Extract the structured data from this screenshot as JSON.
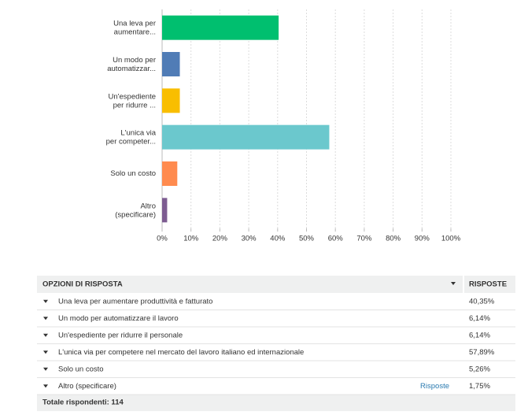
{
  "chart_data": {
    "type": "bar",
    "orientation": "horizontal",
    "categories": [
      "Una leva per\naumentare...",
      "Un modo per\nautomatizzar...",
      "Un'espediente\nper ridurre ...",
      "L'unica via\nper competer...",
      "Solo un costo",
      "Altro\n(specificare)"
    ],
    "values": [
      40.35,
      6.14,
      6.14,
      57.89,
      5.26,
      1.75
    ],
    "value_labels": [
      "40,35%",
      "6,14%",
      "6,14%",
      "57,89%",
      "5,26%",
      "1,75%"
    ],
    "colors": [
      "#00bf6f",
      "#507cb6",
      "#f9be00",
      "#6bc8cd",
      "#ff8b4f",
      "#7d5c91"
    ],
    "xlim": [
      0,
      100
    ],
    "xticks": [
      {
        "value": 0,
        "label": "0%"
      },
      {
        "value": 10,
        "label": "10%"
      },
      {
        "value": 20,
        "label": "20%"
      },
      {
        "value": 30,
        "label": "30%"
      },
      {
        "value": 40,
        "label": "40%"
      },
      {
        "value": 50,
        "label": "50%"
      },
      {
        "value": 60,
        "label": "60%"
      },
      {
        "value": 70,
        "label": "70%"
      },
      {
        "value": 80,
        "label": "80%"
      },
      {
        "value": 90,
        "label": "90%"
      },
      {
        "value": 100,
        "label": "100%"
      }
    ],
    "grid": true
  },
  "table": {
    "header": [
      "OPZIONI DI RISPOSTA",
      "RISPOSTE"
    ],
    "rows": [
      "Una leva per aumentare produttività e fatturato",
      "Un modo per automatizzare il lavoro",
      "Un'espediente per ridurre il personale",
      "L'unica via per competere nel mercato del lavoro italiano ed internazionale",
      "Solo un costo",
      "Altro (specificare)"
    ],
    "link": "Risposte",
    "footer": "Totale rispondenti: 114"
  }
}
